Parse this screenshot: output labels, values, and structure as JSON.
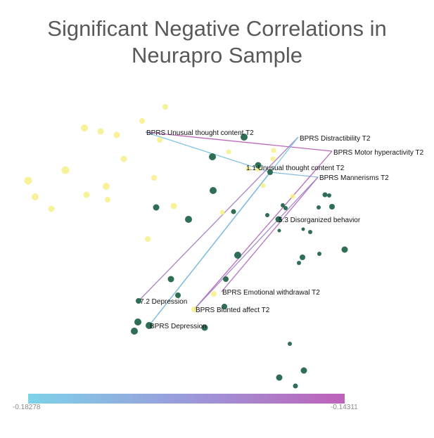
{
  "title_lines": [
    "Significant Negative Correlations in",
    "Neurapro Sample"
  ],
  "colors": {
    "node_yellow": "#f6ef86",
    "node_green": "#2e6e55",
    "edge_low": "#6ecde6",
    "edge_high": "#b74fb1"
  },
  "colorbar": {
    "min_label": "-0.18278",
    "max_label": "-0.14311",
    "min": -0.18278,
    "max": -0.14311
  },
  "labels": [
    {
      "id": "bprs-unusual-thought",
      "text": "BPRS Unusual thought content T2"
    },
    {
      "id": "bprs-distractibility",
      "text": "BPRS Distractibility T2"
    },
    {
      "id": "bprs-motor-hyperactivity",
      "text": "BPRS Motor hyperactivity T2"
    },
    {
      "id": "unusual-thought-1-1",
      "text": "1.1 Unusual thought content T2"
    },
    {
      "id": "bprs-mannerisms",
      "text": "BPRS Mannerisms  T2"
    },
    {
      "id": "disorganized-behavior",
      "text": "5.3 Disorganized behavior"
    },
    {
      "id": "bprs-emotional-withdrawal",
      "text": "BPRS Emotional withdrawal T2"
    },
    {
      "id": "depression-7-2",
      "text": "7.2 Depression"
    },
    {
      "id": "bprs-blunted-affect",
      "text": "BPRS Blunted affect T2"
    },
    {
      "id": "bprs-depression",
      "text": "BPRS Depression"
    }
  ],
  "edges": [
    {
      "from": "bprs-unusual-thought",
      "to": "bprs-motor-hyperactivity",
      "r": -0.146
    },
    {
      "from": "bprs-unusual-thought",
      "to": "unusual-thought-1-1",
      "r": -0.178
    },
    {
      "from": "unusual-thought-1-1",
      "to": "bprs-mannerisms",
      "r": -0.175
    },
    {
      "from": "bprs-distractibility",
      "to": "depression-7-2",
      "r": -0.155
    },
    {
      "from": "bprs-distractibility",
      "to": "bprs-depression",
      "r": -0.18
    },
    {
      "from": "unusual-thought-1-1",
      "to": "bprs-depression",
      "r": -0.176
    },
    {
      "from": "bprs-motor-hyperactivity",
      "to": "bprs-blunted-affect",
      "r": -0.147
    },
    {
      "from": "bprs-mannerisms",
      "to": "bprs-emotional-withdrawal",
      "r": -0.15
    },
    {
      "from": "bprs-mannerisms",
      "to": "bprs-blunted-affect",
      "r": -0.158
    }
  ]
}
